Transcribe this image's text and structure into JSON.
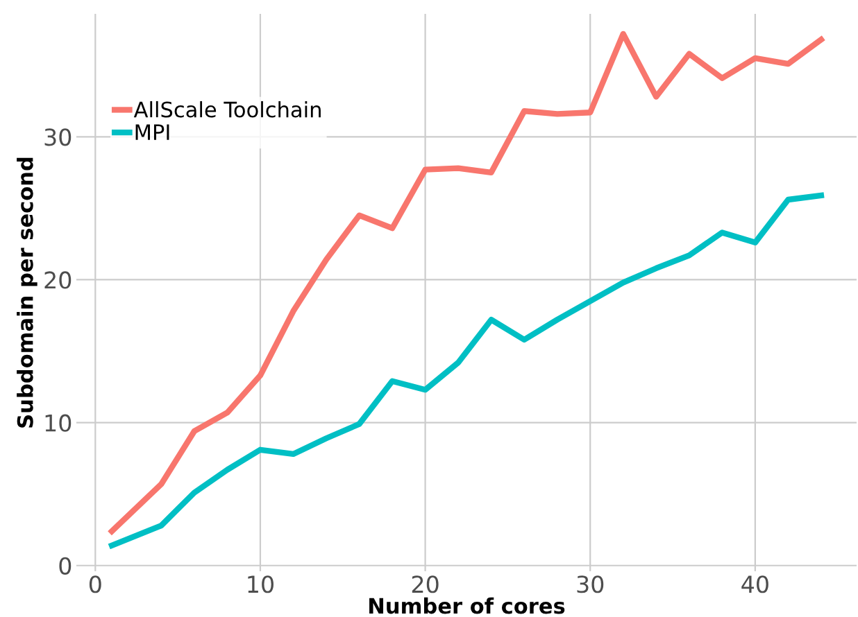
{
  "chart_data": {
    "type": "line",
    "xlabel": "Number of cores",
    "ylabel": "Subdomain per second",
    "x": [
      1,
      4,
      6,
      8,
      10,
      12,
      14,
      16,
      18,
      20,
      22,
      24,
      26,
      28,
      30,
      32,
      34,
      36,
      38,
      40,
      42,
      44
    ],
    "series": [
      {
        "name": "AllScale Toolchain",
        "color": "#f8766d",
        "values": [
          2.4,
          5.7,
          9.4,
          10.7,
          13.3,
          17.8,
          21.4,
          24.5,
          23.6,
          27.7,
          27.8,
          27.5,
          31.8,
          31.6,
          31.7,
          37.2,
          32.8,
          35.8,
          34.1,
          35.5,
          35.1,
          36.8
        ]
      },
      {
        "name": "MPI",
        "color": "#00bfc4",
        "values": [
          1.4,
          2.8,
          5.1,
          6.7,
          8.1,
          7.8,
          8.9,
          9.9,
          12.9,
          12.3,
          14.2,
          17.2,
          15.8,
          17.2,
          18.5,
          19.8,
          20.8,
          21.7,
          23.3,
          22.6,
          25.6,
          25.9
        ]
      }
    ],
    "xlim": [
      -1.15,
      46.15
    ],
    "ylim": [
      -0.4,
      38.6
    ],
    "xticks": [
      0,
      10,
      20,
      30,
      40
    ],
    "yticks": [
      0,
      10,
      20,
      30
    ],
    "grid": true,
    "legend": "top left",
    "marker": "none",
    "line_style": "solid"
  }
}
